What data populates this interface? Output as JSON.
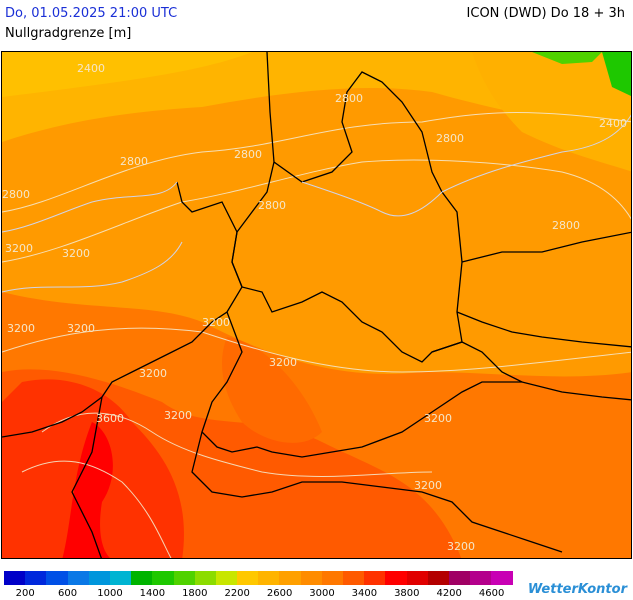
{
  "header": {
    "datetime": "Do, 01.05.2025 21:00 UTC",
    "model": "ICON (DWD) Do 18 + 3h",
    "parameter": "Nullgradgrenze [m]"
  },
  "map": {
    "contour_labels": [
      "2400",
      "2800",
      "2800",
      "2800",
      "2800",
      "2800",
      "2800",
      "2400",
      "2800",
      "3200",
      "3200",
      "3200",
      "3200",
      "3200",
      "3200",
      "3200",
      "3600",
      "3200",
      "3200",
      "3200",
      "3200"
    ]
  },
  "legend": {
    "colors": [
      "#0000c8",
      "#0028dc",
      "#0050e6",
      "#0a78e6",
      "#0096dc",
      "#00b4d2",
      "#00b400",
      "#1ec800",
      "#50d200",
      "#8cdc00",
      "#c8e600",
      "#ffc800",
      "#ffb400",
      "#ffa000",
      "#ff8c00",
      "#ff7800",
      "#ff5a00",
      "#ff3200",
      "#ff0000",
      "#e10000",
      "#b40000",
      "#a00064",
      "#b4008c",
      "#c800b4"
    ],
    "ticks": [
      "200",
      "600",
      "1000",
      "1400",
      "1800",
      "2200",
      "2600",
      "3000",
      "3400",
      "3800",
      "4200",
      "4600"
    ]
  },
  "logo": "WetterKontor"
}
